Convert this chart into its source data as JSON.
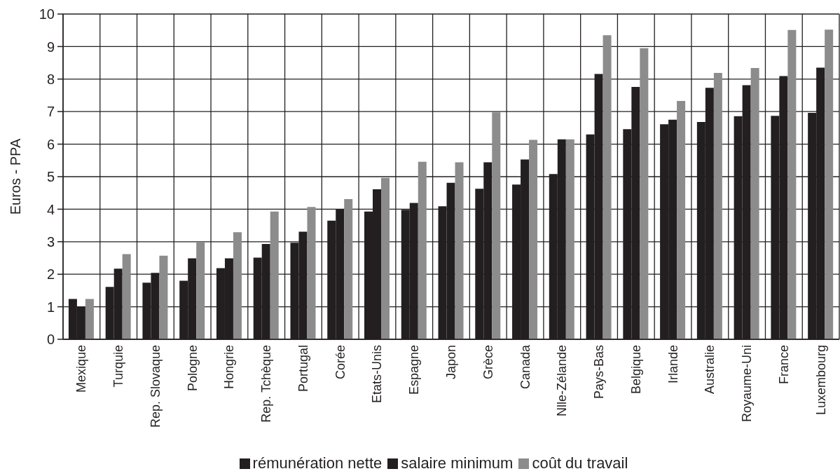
{
  "chart_data": {
    "type": "bar",
    "ylabel": "Euros - PPA",
    "categories": [
      "Mexique",
      "Turquie",
      "Rep. Slovaque",
      "Pologne",
      "Hongrie",
      "Rep. Tchèque",
      "Portugal",
      "Corée",
      "Etats-Unis",
      "Espagne",
      "Japon",
      "Grèce",
      "Canada",
      "Nlle-Zélande",
      "Pays-Bas",
      "Belgique",
      "Irlande",
      "Australie",
      "Royaume-Uni",
      "France",
      "Luxembourg"
    ],
    "series": [
      {
        "name": "rémunération nette",
        "color": "#231f20",
        "values": [
          1.24,
          1.61,
          1.74,
          1.8,
          2.19,
          2.51,
          2.97,
          3.65,
          3.93,
          3.98,
          4.09,
          4.63,
          4.76,
          5.08,
          6.3,
          6.46,
          6.61,
          6.68,
          6.86,
          6.87,
          6.96
        ]
      },
      {
        "name": "salaire minimum",
        "color": "#231f20",
        "values": [
          1.0,
          2.17,
          2.04,
          2.49,
          2.49,
          2.93,
          3.31,
          4.0,
          4.61,
          4.19,
          4.81,
          5.44,
          5.53,
          6.15,
          8.16,
          7.76,
          6.75,
          7.73,
          7.81,
          8.09,
          8.35
        ]
      },
      {
        "name": "coût du travail",
        "color": "#8c8c8c",
        "values": [
          1.24,
          2.62,
          2.57,
          2.99,
          3.29,
          3.93,
          4.07,
          4.31,
          4.96,
          5.46,
          5.44,
          6.98,
          6.13,
          6.15,
          9.35,
          8.95,
          7.33,
          8.19,
          8.34,
          9.51,
          9.52
        ]
      }
    ],
    "ylim": [
      0,
      10
    ],
    "yticks": [
      0,
      1,
      2,
      3,
      4,
      5,
      6,
      7,
      8,
      9,
      10
    ],
    "grid": true,
    "legend": "bottom"
  }
}
